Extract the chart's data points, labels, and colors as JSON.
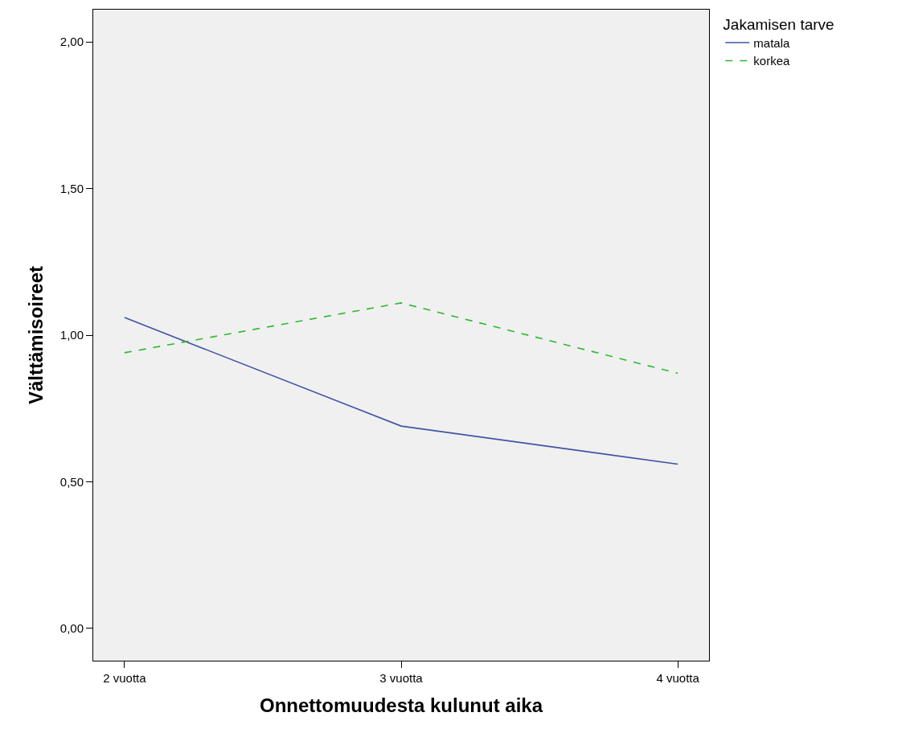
{
  "chart_data": {
    "type": "line",
    "xlabel": "Onnettomuudesta kulunut aika",
    "ylabel": "Välttämisoireet",
    "legend_title": "Jakamisen tarve",
    "categories": [
      "2 vuotta",
      "3 vuotta",
      "4 vuotta"
    ],
    "series": [
      {
        "name": "matala",
        "color": "#3e53a4",
        "line_style": "solid",
        "values": [
          1.06,
          0.69,
          0.56
        ]
      },
      {
        "name": "korkea",
        "color": "#2eb82e",
        "line_style": "dashed",
        "values": [
          0.94,
          1.11,
          0.87
        ]
      }
    ],
    "ylim": [
      -0.11,
      2.11
    ],
    "yticks": [
      {
        "value": 0,
        "label": "0,00"
      },
      {
        "value": 0.5,
        "label": "0,50"
      },
      {
        "value": 1,
        "label": "1,00"
      },
      {
        "value": 1.5,
        "label": "1,50"
      },
      {
        "value": 2,
        "label": "2,00"
      }
    ],
    "grid": false,
    "legend": "top right",
    "marker": "none"
  }
}
